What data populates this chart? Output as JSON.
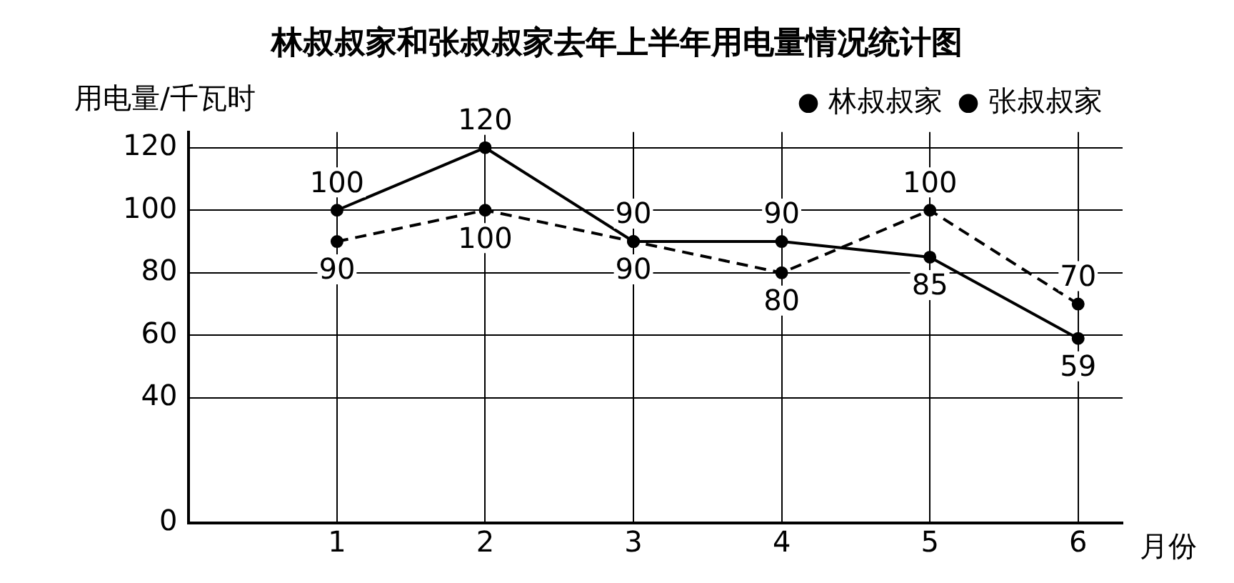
{
  "chart_data": {
    "type": "line",
    "title": "林叔叔家和张叔叔家去年上半年用电量情况统计图",
    "xlabel": "月份",
    "ylabel": "用电量/千瓦时",
    "x": [
      1,
      2,
      3,
      4,
      5,
      6
    ],
    "xlim": [
      0,
      6.3
    ],
    "xticks": [
      1,
      2,
      3,
      4,
      5,
      6
    ],
    "ylim": [
      0,
      125
    ],
    "yticks": [
      0,
      40,
      60,
      80,
      100,
      120
    ],
    "grid": true,
    "legend": "top right",
    "marker": "circle",
    "data_labels": true,
    "series": [
      {
        "name": "林叔叔家",
        "color": "#000000",
        "line_style": "solid",
        "values": [
          100,
          120,
          90,
          90,
          85,
          59
        ]
      },
      {
        "name": "张叔叔家",
        "color": "#000000",
        "line_style": "dashed",
        "values": [
          90,
          100,
          90,
          80,
          100,
          70
        ]
      }
    ]
  }
}
